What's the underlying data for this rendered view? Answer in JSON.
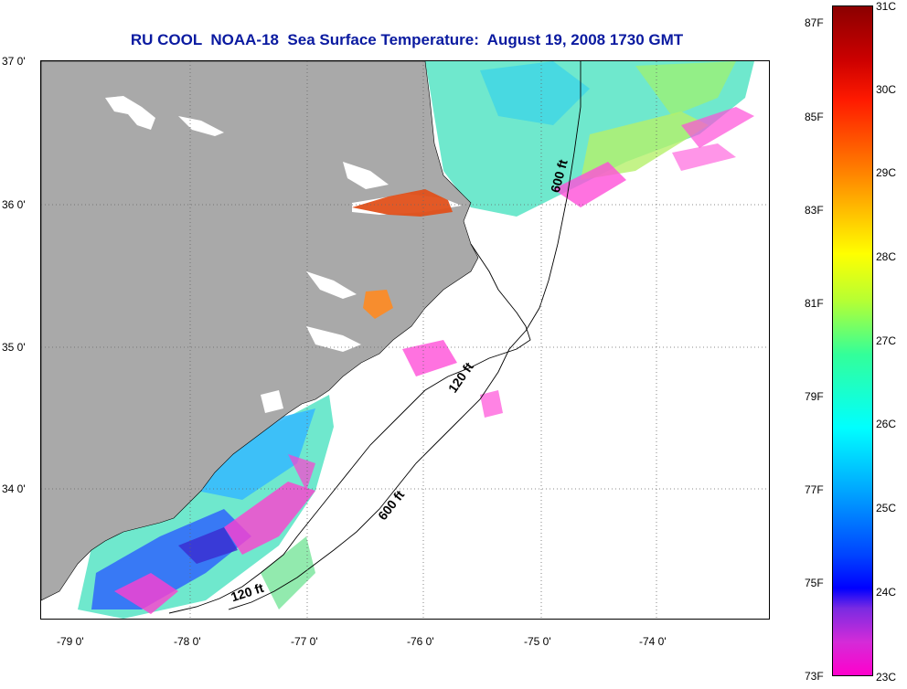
{
  "title": "RU COOL  NOAA-18  Sea Surface Temperature:  August 19, 2008 1730 GMT",
  "map": {
    "lon_labels": [
      "-79 0'",
      "-78 0'",
      "-77 0'",
      "-76 0'",
      "-75 0'",
      "-74 0'"
    ],
    "lat_labels": [
      "37 0'",
      "36 0'",
      "35 0'",
      "34 0'"
    ],
    "contour_labels": [
      "600 ft",
      "120 ft",
      "600 ft",
      "120 ft"
    ],
    "land_color": "#a9a9a9"
  },
  "colorbar": {
    "fahrenheit": [
      "87F",
      "85F",
      "83F",
      "81F",
      "79F",
      "77F",
      "75F",
      "73F"
    ],
    "celsius": [
      "31C",
      "30C",
      "29C",
      "28C",
      "27C",
      "26C",
      "25C",
      "24C",
      "23C"
    ],
    "range_c": [
      23,
      31
    ],
    "colors": [
      "#ff00cc",
      "#8a2be2",
      "#0000ff",
      "#00aaff",
      "#00ffff",
      "#33ff99",
      "#ffff00",
      "#ff9900",
      "#ff3300",
      "#cc0000",
      "#8b0000"
    ]
  }
}
